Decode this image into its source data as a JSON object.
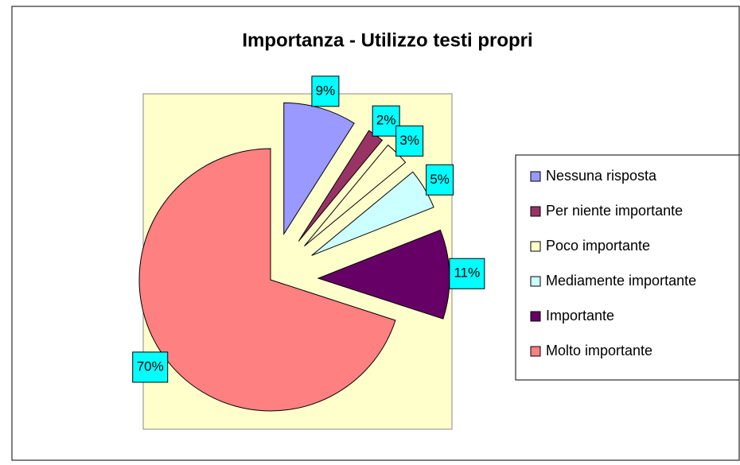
{
  "chart_data": {
    "type": "pie",
    "title": "Importanza - Utilizzo testi propri",
    "categories": [
      "Nessuna risposta",
      "Per niente importante",
      "Poco importante",
      "Mediamente importante",
      "Importante",
      "Molto importante"
    ],
    "values": [
      9,
      2,
      3,
      5,
      11,
      70
    ],
    "value_labels": [
      "9%",
      "2%",
      "3%",
      "5%",
      "11%",
      "70%"
    ],
    "colors": [
      "#9999ff",
      "#993366",
      "#ffffcc",
      "#ccffff",
      "#660066",
      "#ff8080"
    ],
    "legend": "right"
  }
}
